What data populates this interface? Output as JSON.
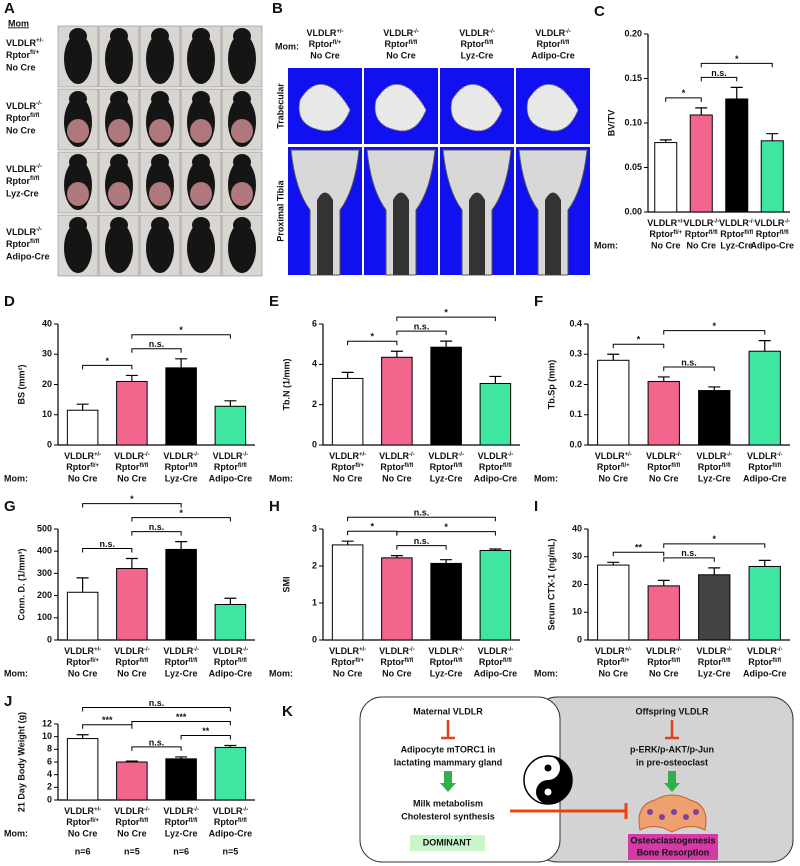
{
  "figure": {
    "panel_a": {
      "panel": "A",
      "header": "Mom",
      "gene_labels": [
        "VLDLR",
        "Rptor"
      ],
      "rows": [
        {
          "vldlr": "+/-",
          "rptor": "fl/+",
          "cre": "No Cre"
        },
        {
          "vldlr": "-/-",
          "rptor": "fl/fl",
          "cre": "No Cre"
        },
        {
          "vldlr": "-/-",
          "rptor": "fl/fl",
          "cre": "Lyz-Cre"
        },
        {
          "vldlr": "-/-",
          "rptor": "fl/fl",
          "cre": "Adipo-Cre"
        }
      ]
    },
    "panel_b": {
      "panel": "B",
      "mom_label": "Mom:",
      "gene_labels": [
        "VLDLR",
        "Rptor"
      ],
      "columns": [
        {
          "vldlr": "+/-",
          "rptor": "fl/+",
          "cre": "No Cre"
        },
        {
          "vldlr": "-/-",
          "rptor": "fl/fl",
          "cre": "No Cre"
        },
        {
          "vldlr": "-/-",
          "rptor": "fl/fl",
          "cre": "Lyz-Cre"
        },
        {
          "vldlr": "-/-",
          "rptor": "fl/fl",
          "cre": "Adipo-Cre"
        }
      ],
      "rows": [
        "Trabecular",
        "Proximal Tibia"
      ]
    },
    "panel_k": {
      "panel": "K",
      "maternal": "Maternal VLDLR",
      "adipocyte": [
        "Adipocyte mTORC1 in",
        "lactating  mammary gland"
      ],
      "milk": [
        "Milk metabolism",
        "Cholesterol synthesis"
      ],
      "dominant": "DOMINANT",
      "offspring": "Offspring VLDLR",
      "signaling": [
        "p-ERK/p-AKT/p-Jun",
        "in pre-osteoclast"
      ],
      "outcome": [
        "Osteoclastogenesis",
        "Bone Resorption"
      ]
    }
  },
  "chart_data": [
    {
      "type": "bar",
      "panel": "C",
      "ylabel": "BV/TV",
      "mom_label": "Mom:",
      "gene_labels": [
        "VLDLR",
        "Rptor"
      ],
      "categories": [
        {
          "vldlr": "+/-",
          "rptor": "fl/+",
          "cre": "No Cre"
        },
        {
          "vldlr": "-/-",
          "rptor": "fl/fl",
          "cre": "No Cre"
        },
        {
          "vldlr": "-/-",
          "rptor": "fl/fl",
          "cre": "Lyz-Cre"
        },
        {
          "vldlr": "-/-",
          "rptor": "fl/fl",
          "cre": "Adipo-Cre"
        }
      ],
      "colors": [
        "#ffffff",
        "#f2658c",
        "#000000",
        "#3ee6a0"
      ],
      "values": [
        0.078,
        0.109,
        0.127,
        0.08
      ],
      "errors": [
        0.003,
        0.008,
        0.013,
        0.008
      ],
      "ylim": [
        0,
        0.2
      ],
      "yticks": [
        {
          "value": 0,
          "label": "0.00"
        },
        {
          "value": 0.05,
          "label": "0.05"
        },
        {
          "value": 0.1,
          "label": "0.10"
        },
        {
          "value": 0.15,
          "label": "0.15"
        },
        {
          "value": 0.2,
          "label": "0.20"
        }
      ],
      "annotations": [
        {
          "from": 0,
          "to": 1,
          "label": "*"
        },
        {
          "from": 1,
          "to": 2,
          "label": "n.s."
        },
        {
          "from": 1,
          "to": 3,
          "label": "*"
        }
      ]
    },
    {
      "type": "bar",
      "panel": "D",
      "ylabel": "BS (mm²)",
      "mom_label": "Mom:",
      "gene_labels": [
        "VLDLR",
        "Rptor"
      ],
      "categories": [
        {
          "vldlr": "+/-",
          "rptor": "fl/+",
          "cre": "No Cre"
        },
        {
          "vldlr": "-/-",
          "rptor": "fl/fl",
          "cre": "No Cre"
        },
        {
          "vldlr": "-/-",
          "rptor": "fl/fl",
          "cre": "Lyz-Cre"
        },
        {
          "vldlr": "-/-",
          "rptor": "fl/fl",
          "cre": "Adipo-Cre"
        }
      ],
      "colors": [
        "#ffffff",
        "#f2658c",
        "#000000",
        "#3ee6a0"
      ],
      "values": [
        11.5,
        21,
        25.5,
        12.8
      ],
      "errors": [
        2,
        2,
        3,
        1.8
      ],
      "ylim": [
        0,
        40
      ],
      "yticks": [
        0,
        10,
        20,
        30,
        40
      ],
      "annotations": [
        {
          "from": 0,
          "to": 1,
          "label": "*"
        },
        {
          "from": 1,
          "to": 2,
          "label": "n.s."
        },
        {
          "from": 1,
          "to": 3,
          "label": "*"
        }
      ]
    },
    {
      "type": "bar",
      "panel": "E",
      "ylabel": "Tb.N (1/mm)",
      "mom_label": "Mom:",
      "gene_labels": [
        "VLDLR",
        "Rptor"
      ],
      "categories": [
        {
          "vldlr": "+/-",
          "rptor": "fl/+",
          "cre": "No Cre"
        },
        {
          "vldlr": "-/-",
          "rptor": "fl/fl",
          "cre": "No Cre"
        },
        {
          "vldlr": "-/-",
          "rptor": "fl/fl",
          "cre": "Lyz-Cre"
        },
        {
          "vldlr": "-/-",
          "rptor": "fl/fl",
          "cre": "Adipo-Cre"
        }
      ],
      "colors": [
        "#ffffff",
        "#f2658c",
        "#000000",
        "#3ee6a0"
      ],
      "values": [
        3.3,
        4.35,
        4.85,
        3.05
      ],
      "errors": [
        0.3,
        0.3,
        0.3,
        0.35
      ],
      "ylim": [
        0,
        6
      ],
      "yticks": [
        0,
        2,
        4,
        6
      ],
      "annotations": [
        {
          "from": 0,
          "to": 1,
          "label": "*"
        },
        {
          "from": 1,
          "to": 2,
          "label": "n.s."
        },
        {
          "from": 1,
          "to": 3,
          "label": "*"
        }
      ]
    },
    {
      "type": "bar",
      "panel": "F",
      "ylabel": "Tb.Sp (mm)",
      "mom_label": "Mom:",
      "gene_labels": [
        "VLDLR",
        "Rptor"
      ],
      "categories": [
        {
          "vldlr": "+/-",
          "rptor": "fl/+",
          "cre": "No Cre"
        },
        {
          "vldlr": "-/-",
          "rptor": "fl/fl",
          "cre": "No Cre"
        },
        {
          "vldlr": "-/-",
          "rptor": "fl/fl",
          "cre": "Lyz-Cre"
        },
        {
          "vldlr": "-/-",
          "rptor": "fl/fl",
          "cre": "Adipo-Cre"
        }
      ],
      "colors": [
        "#ffffff",
        "#f2658c",
        "#000000",
        "#3ee6a0"
      ],
      "values": [
        0.28,
        0.21,
        0.18,
        0.31
      ],
      "errors": [
        0.02,
        0.015,
        0.012,
        0.035
      ],
      "ylim": [
        0,
        0.4
      ],
      "yticks": [
        {
          "value": 0,
          "label": "0.0"
        },
        0.1,
        0.2,
        0.3,
        0.4
      ],
      "annotations": [
        {
          "from": 0,
          "to": 1,
          "label": "*"
        },
        {
          "from": 1,
          "to": 2,
          "label": "n.s."
        },
        {
          "from": 1,
          "to": 3,
          "label": "*"
        }
      ]
    },
    {
      "type": "bar",
      "panel": "G",
      "ylabel": "Conn. D. (1/mm³)",
      "mom_label": "Mom:",
      "gene_labels": [
        "VLDLR",
        "Rptor"
      ],
      "categories": [
        {
          "vldlr": "+/-",
          "rptor": "fl/+",
          "cre": "No Cre"
        },
        {
          "vldlr": "-/-",
          "rptor": "fl/fl",
          "cre": "No Cre"
        },
        {
          "vldlr": "-/-",
          "rptor": "fl/fl",
          "cre": "Lyz-Cre"
        },
        {
          "vldlr": "-/-",
          "rptor": "fl/fl",
          "cre": "Adipo-Cre"
        }
      ],
      "colors": [
        "#ffffff",
        "#f2658c",
        "#000000",
        "#3ee6a0"
      ],
      "values": [
        215,
        322,
        408,
        160
      ],
      "errors": [
        65,
        45,
        35,
        28
      ],
      "ylim": [
        0,
        500
      ],
      "yticks": [
        0,
        100,
        200,
        300,
        400,
        500
      ],
      "annotations": [
        {
          "from": 0,
          "to": 1,
          "label": "n.s."
        },
        {
          "from": 1,
          "to": 2,
          "label": "n.s."
        },
        {
          "from": 1,
          "to": 3,
          "label": "*"
        },
        {
          "from": 0,
          "to": 2,
          "label": "*"
        }
      ]
    },
    {
      "type": "bar",
      "panel": "H",
      "ylabel": "SMI",
      "mom_label": "Mom:",
      "gene_labels": [
        "VLDLR",
        "Rptor"
      ],
      "categories": [
        {
          "vldlr": "+/-",
          "rptor": "fl/+",
          "cre": "No Cre"
        },
        {
          "vldlr": "-/-",
          "rptor": "fl/fl",
          "cre": "No Cre"
        },
        {
          "vldlr": "-/-",
          "rptor": "fl/fl",
          "cre": "Lyz-Cre"
        },
        {
          "vldlr": "-/-",
          "rptor": "fl/fl",
          "cre": "Adipo-Cre"
        }
      ],
      "colors": [
        "#ffffff",
        "#f2658c",
        "#000000",
        "#3ee6a0"
      ],
      "values": [
        2.57,
        2.22,
        2.07,
        2.42
      ],
      "errors": [
        0.1,
        0.06,
        0.1,
        0.04
      ],
      "ylim": [
        0,
        3
      ],
      "yticks": [
        0,
        1,
        2,
        3
      ],
      "annotations": [
        {
          "from": 0,
          "to": 1,
          "label": "*"
        },
        {
          "from": 1,
          "to": 2,
          "label": "n.s."
        },
        {
          "from": 1,
          "to": 3,
          "label": "*"
        },
        {
          "from": 0,
          "to": 3,
          "label": "n.s."
        }
      ]
    },
    {
      "type": "bar",
      "panel": "I",
      "ylabel": "Serum CTX-1 (ng/mL)",
      "mom_label": "Mom:",
      "gene_labels": [
        "VLDLR",
        "Rptor"
      ],
      "categories": [
        {
          "vldlr": "+/-",
          "rptor": "fl/+",
          "cre": "No Cre"
        },
        {
          "vldlr": "-/-",
          "rptor": "fl/fl",
          "cre": "No Cre"
        },
        {
          "vldlr": "-/-",
          "rptor": "fl/fl",
          "cre": "Lyz-Cre"
        },
        {
          "vldlr": "-/-",
          "rptor": "fl/fl",
          "cre": "Adipo-Cre"
        }
      ],
      "colors": [
        "#ffffff",
        "#f2658c",
        "#444444",
        "#3ee6a0"
      ],
      "values": [
        27,
        19.5,
        23.5,
        26.5
      ],
      "errors": [
        1,
        2,
        2.5,
        2.2
      ],
      "ylim": [
        0,
        40
      ],
      "yticks": [
        0,
        10,
        20,
        30,
        40
      ],
      "annotations": [
        {
          "from": 0,
          "to": 1,
          "label": "**"
        },
        {
          "from": 1,
          "to": 2,
          "label": "n.s."
        },
        {
          "from": 1,
          "to": 3,
          "label": "*"
        }
      ]
    },
    {
      "type": "bar",
      "panel": "J",
      "ylabel": "21 Day Body Weight (g)",
      "mom_label": "Mom:",
      "gene_labels": [
        "VLDLR",
        "Rptor"
      ],
      "categories": [
        {
          "vldlr": "+/-",
          "rptor": "fl/+",
          "cre": "No Cre"
        },
        {
          "vldlr": "-/-",
          "rptor": "fl/fl",
          "cre": "No Cre"
        },
        {
          "vldlr": "-/-",
          "rptor": "fl/fl",
          "cre": "Lyz-Cre"
        },
        {
          "vldlr": "-/-",
          "rptor": "fl/fl",
          "cre": "Adipo-Cre"
        }
      ],
      "colors": [
        "#ffffff",
        "#f2658c",
        "#000000",
        "#3ee6a0"
      ],
      "values": [
        9.7,
        6.0,
        6.5,
        8.3
      ],
      "errors": [
        0.6,
        0.15,
        0.3,
        0.3
      ],
      "ylim": [
        0,
        12
      ],
      "yticks": [
        0,
        2,
        4,
        6,
        8,
        10,
        12
      ],
      "n_labels": [
        "n=6",
        "n=5",
        "n=6",
        "n=5"
      ],
      "annotations": [
        {
          "from": 0,
          "to": 1,
          "label": "***"
        },
        {
          "from": 1,
          "to": 2,
          "label": "n.s."
        },
        {
          "from": 2,
          "to": 3,
          "label": "**"
        },
        {
          "from": 1,
          "to": 3,
          "label": "***"
        },
        {
          "from": 0,
          "to": 3,
          "label": "n.s."
        }
      ]
    }
  ]
}
